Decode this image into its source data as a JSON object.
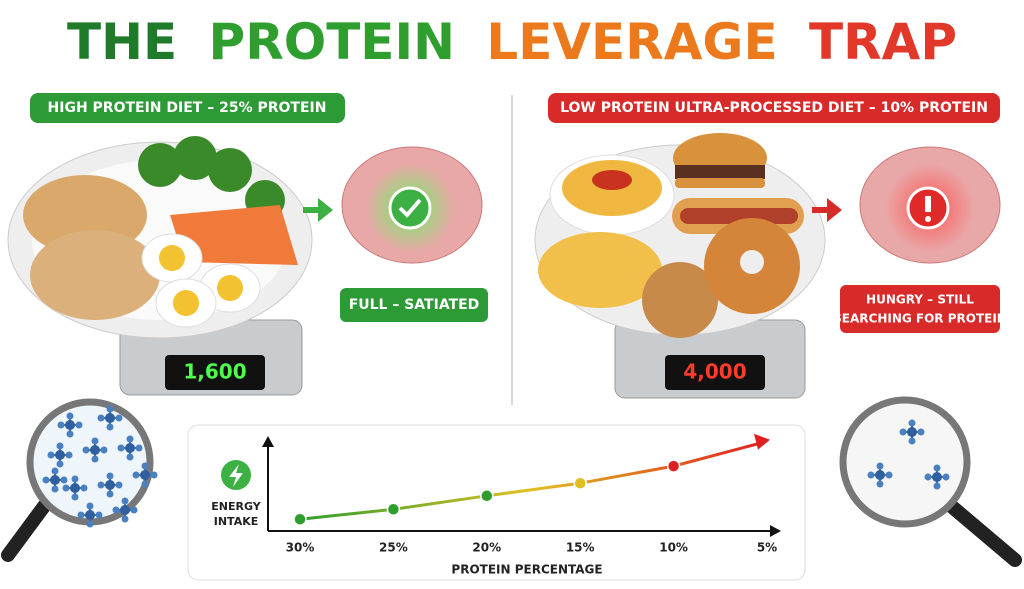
{
  "header": {
    "title_words": [
      "THE",
      "PROTEIN",
      "LEVERAGE",
      "TRAP"
    ]
  },
  "left_panel": {
    "label": "HIGH PROTEIN DIET – 25% PROTEIN",
    "scale_reading": "1,600",
    "status": "FULL – SATIATED"
  },
  "right_panel": {
    "label": "LOW PROTEIN ULTRA-PROCESSED DIET – 10% PROTEIN",
    "scale_reading": "4,000",
    "status_lines": [
      "HUNGRY – STILL",
      "SEARCHING FOR PROTEIN"
    ]
  },
  "chart_data": {
    "type": "line",
    "x_label": "PROTEIN PERCENTAGE",
    "y_label_lines": [
      "ENERGY",
      "INTAKE"
    ],
    "categories": [
      "30%",
      "25%",
      "20%",
      "15%",
      "10%",
      "5%"
    ],
    "values": [
      12,
      23,
      38,
      52,
      71,
      97
    ],
    "ylim": [
      0,
      100
    ],
    "color_start": "#2e9e2e",
    "color_mid": "#e0c020",
    "color_end": "#e02020"
  }
}
